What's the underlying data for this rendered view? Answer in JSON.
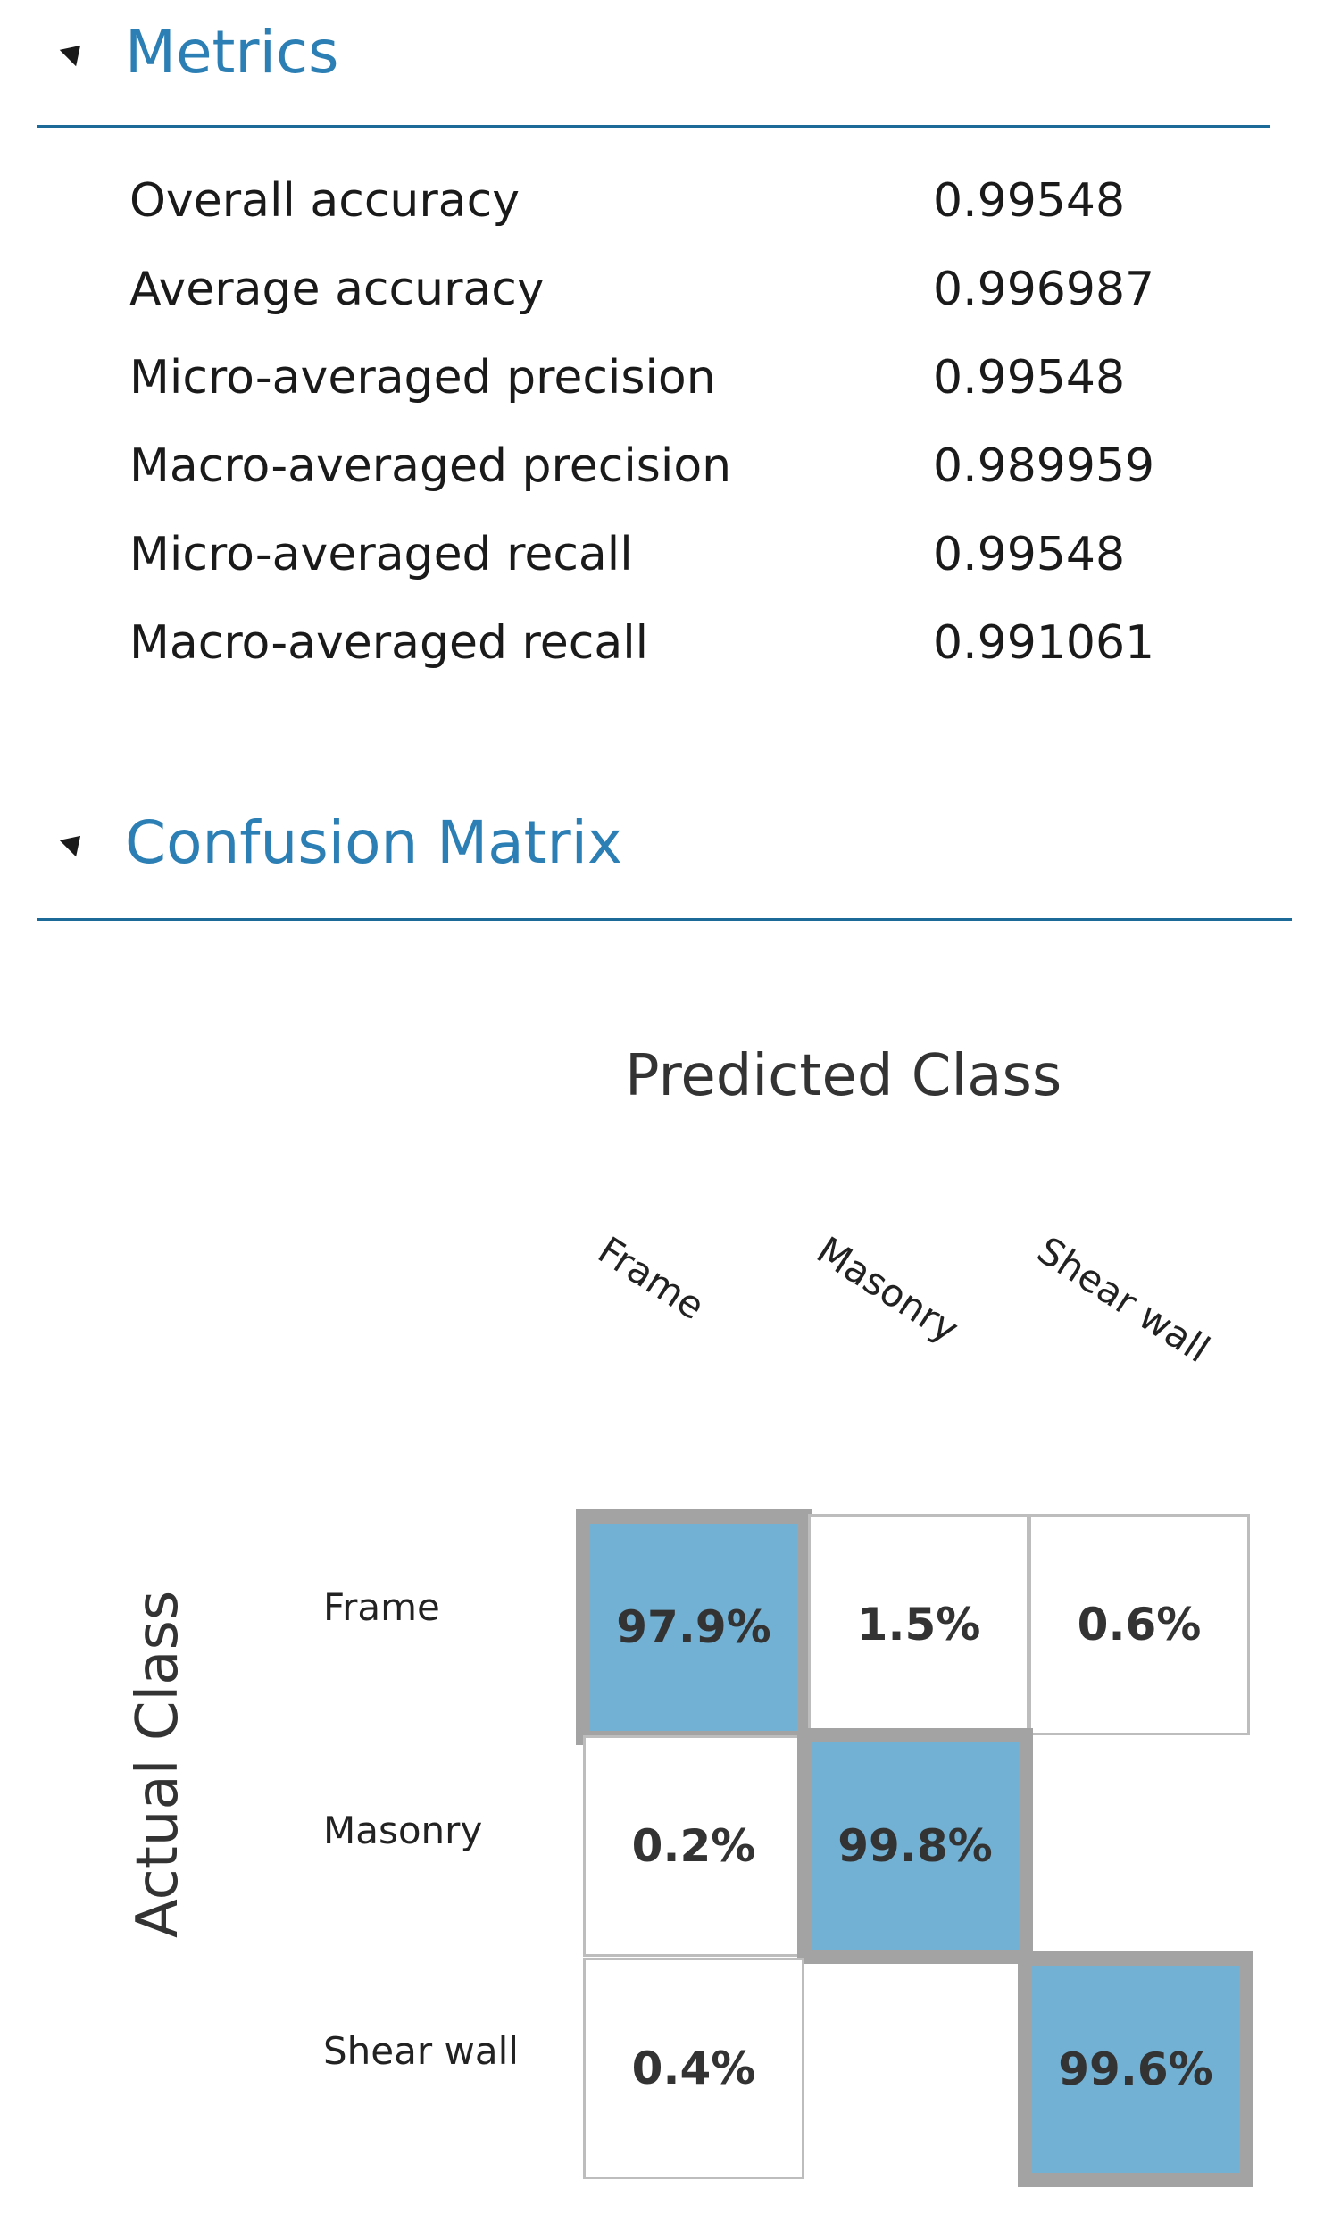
{
  "metrics_section": {
    "title": "Metrics",
    "rows": [
      {
        "name": "Overall accuracy",
        "value": "0.99548"
      },
      {
        "name": "Average accuracy",
        "value": "0.996987"
      },
      {
        "name": "Micro-averaged precision",
        "value": "0.99548"
      },
      {
        "name": "Macro-averaged precision",
        "value": "0.989959"
      },
      {
        "name": "Micro-averaged recall",
        "value": "0.99548"
      },
      {
        "name": "Macro-averaged recall",
        "value": "0.991061"
      }
    ]
  },
  "confusion_section": {
    "title": "Confusion Matrix",
    "predicted_label": "Predicted Class",
    "actual_label": "Actual Class",
    "columns": [
      "Frame",
      "Masonry",
      "Shear wall"
    ],
    "rows": [
      "Frame",
      "Masonry",
      "Shear wall"
    ],
    "cells": [
      [
        "97.9%",
        "1.5%",
        "0.6%"
      ],
      [
        "0.2%",
        "99.8%",
        ""
      ],
      [
        "0.4%",
        "",
        "99.6%"
      ]
    ],
    "highlight_color": "#72b1d4",
    "header_color": "#2c7fb4"
  }
}
